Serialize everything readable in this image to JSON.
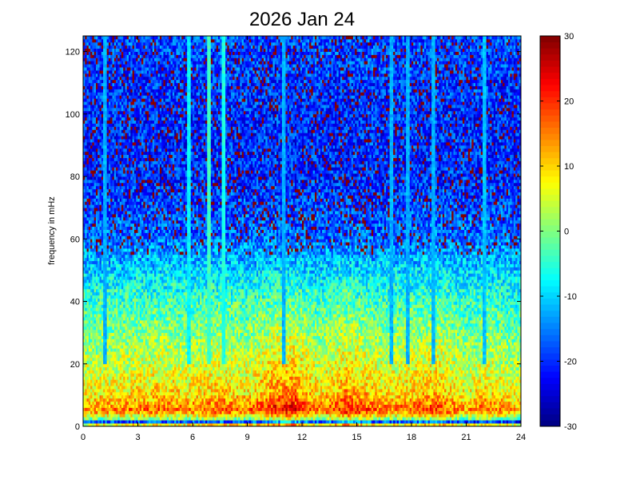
{
  "chart_data": {
    "type": "heatmap",
    "title": "2026 Jan 24",
    "xlabel": "",
    "ylabel": "frequency in mHz",
    "xlim": [
      0,
      24
    ],
    "ylim": [
      0,
      125
    ],
    "x_ticks": [
      0,
      3,
      6,
      9,
      12,
      15,
      18,
      21,
      24
    ],
    "y_ticks": [
      0,
      20,
      40,
      60,
      80,
      100,
      120
    ],
    "colorbar": {
      "colormap": "jet",
      "clim": [
        -30,
        30
      ],
      "ticks": [
        -30,
        -20,
        -10,
        0,
        10,
        20,
        30
      ]
    },
    "grid": false,
    "x_resolution_hours": 0.1,
    "y_resolution_mhz": 1,
    "band_profile": [
      {
        "freq": 0,
        "value": 20
      },
      {
        "freq": 1.5,
        "value": -18
      },
      {
        "freq": 2.5,
        "value": 0
      },
      {
        "freq": 5,
        "value": 16
      },
      {
        "freq": 10,
        "value": 9
      },
      {
        "freq": 20,
        "value": 4
      },
      {
        "freq": 30,
        "value": 0
      },
      {
        "freq": 40,
        "value": -4
      },
      {
        "freq": 50,
        "value": -10
      },
      {
        "freq": 60,
        "value": -16
      },
      {
        "freq": 80,
        "value": -20
      },
      {
        "freq": 100,
        "value": -20
      },
      {
        "freq": 125,
        "value": -18
      }
    ],
    "time_activity": [
      {
        "hour": 0,
        "value": -1
      },
      {
        "hour": 2,
        "value": 0
      },
      {
        "hour": 4,
        "value": 1
      },
      {
        "hour": 6,
        "value": 0
      },
      {
        "hour": 7.5,
        "value": 2
      },
      {
        "hour": 9,
        "value": 0
      },
      {
        "hour": 10.5,
        "value": 5
      },
      {
        "hour": 11.5,
        "value": 6
      },
      {
        "hour": 13,
        "value": 0
      },
      {
        "hour": 14.5,
        "value": 5
      },
      {
        "hour": 16,
        "value": 1
      },
      {
        "hour": 17,
        "value": 0
      },
      {
        "hour": 19.5,
        "value": 3
      },
      {
        "hour": 21,
        "value": -2
      },
      {
        "hour": 22,
        "value": 1
      },
      {
        "hour": 24,
        "value": -3
      }
    ],
    "vertical_streaks": [
      {
        "hour": 1.2,
        "value": -12
      },
      {
        "hour": 5.8,
        "value": -8
      },
      {
        "hour": 6.9,
        "value": -4
      },
      {
        "hour": 7.7,
        "value": -6
      },
      {
        "hour": 11.0,
        "value": -12
      },
      {
        "hour": 16.9,
        "value": -12
      },
      {
        "hour": 17.8,
        "value": -12
      },
      {
        "hour": 19.2,
        "value": -12
      },
      {
        "hour": 22.0,
        "value": -11
      }
    ]
  }
}
